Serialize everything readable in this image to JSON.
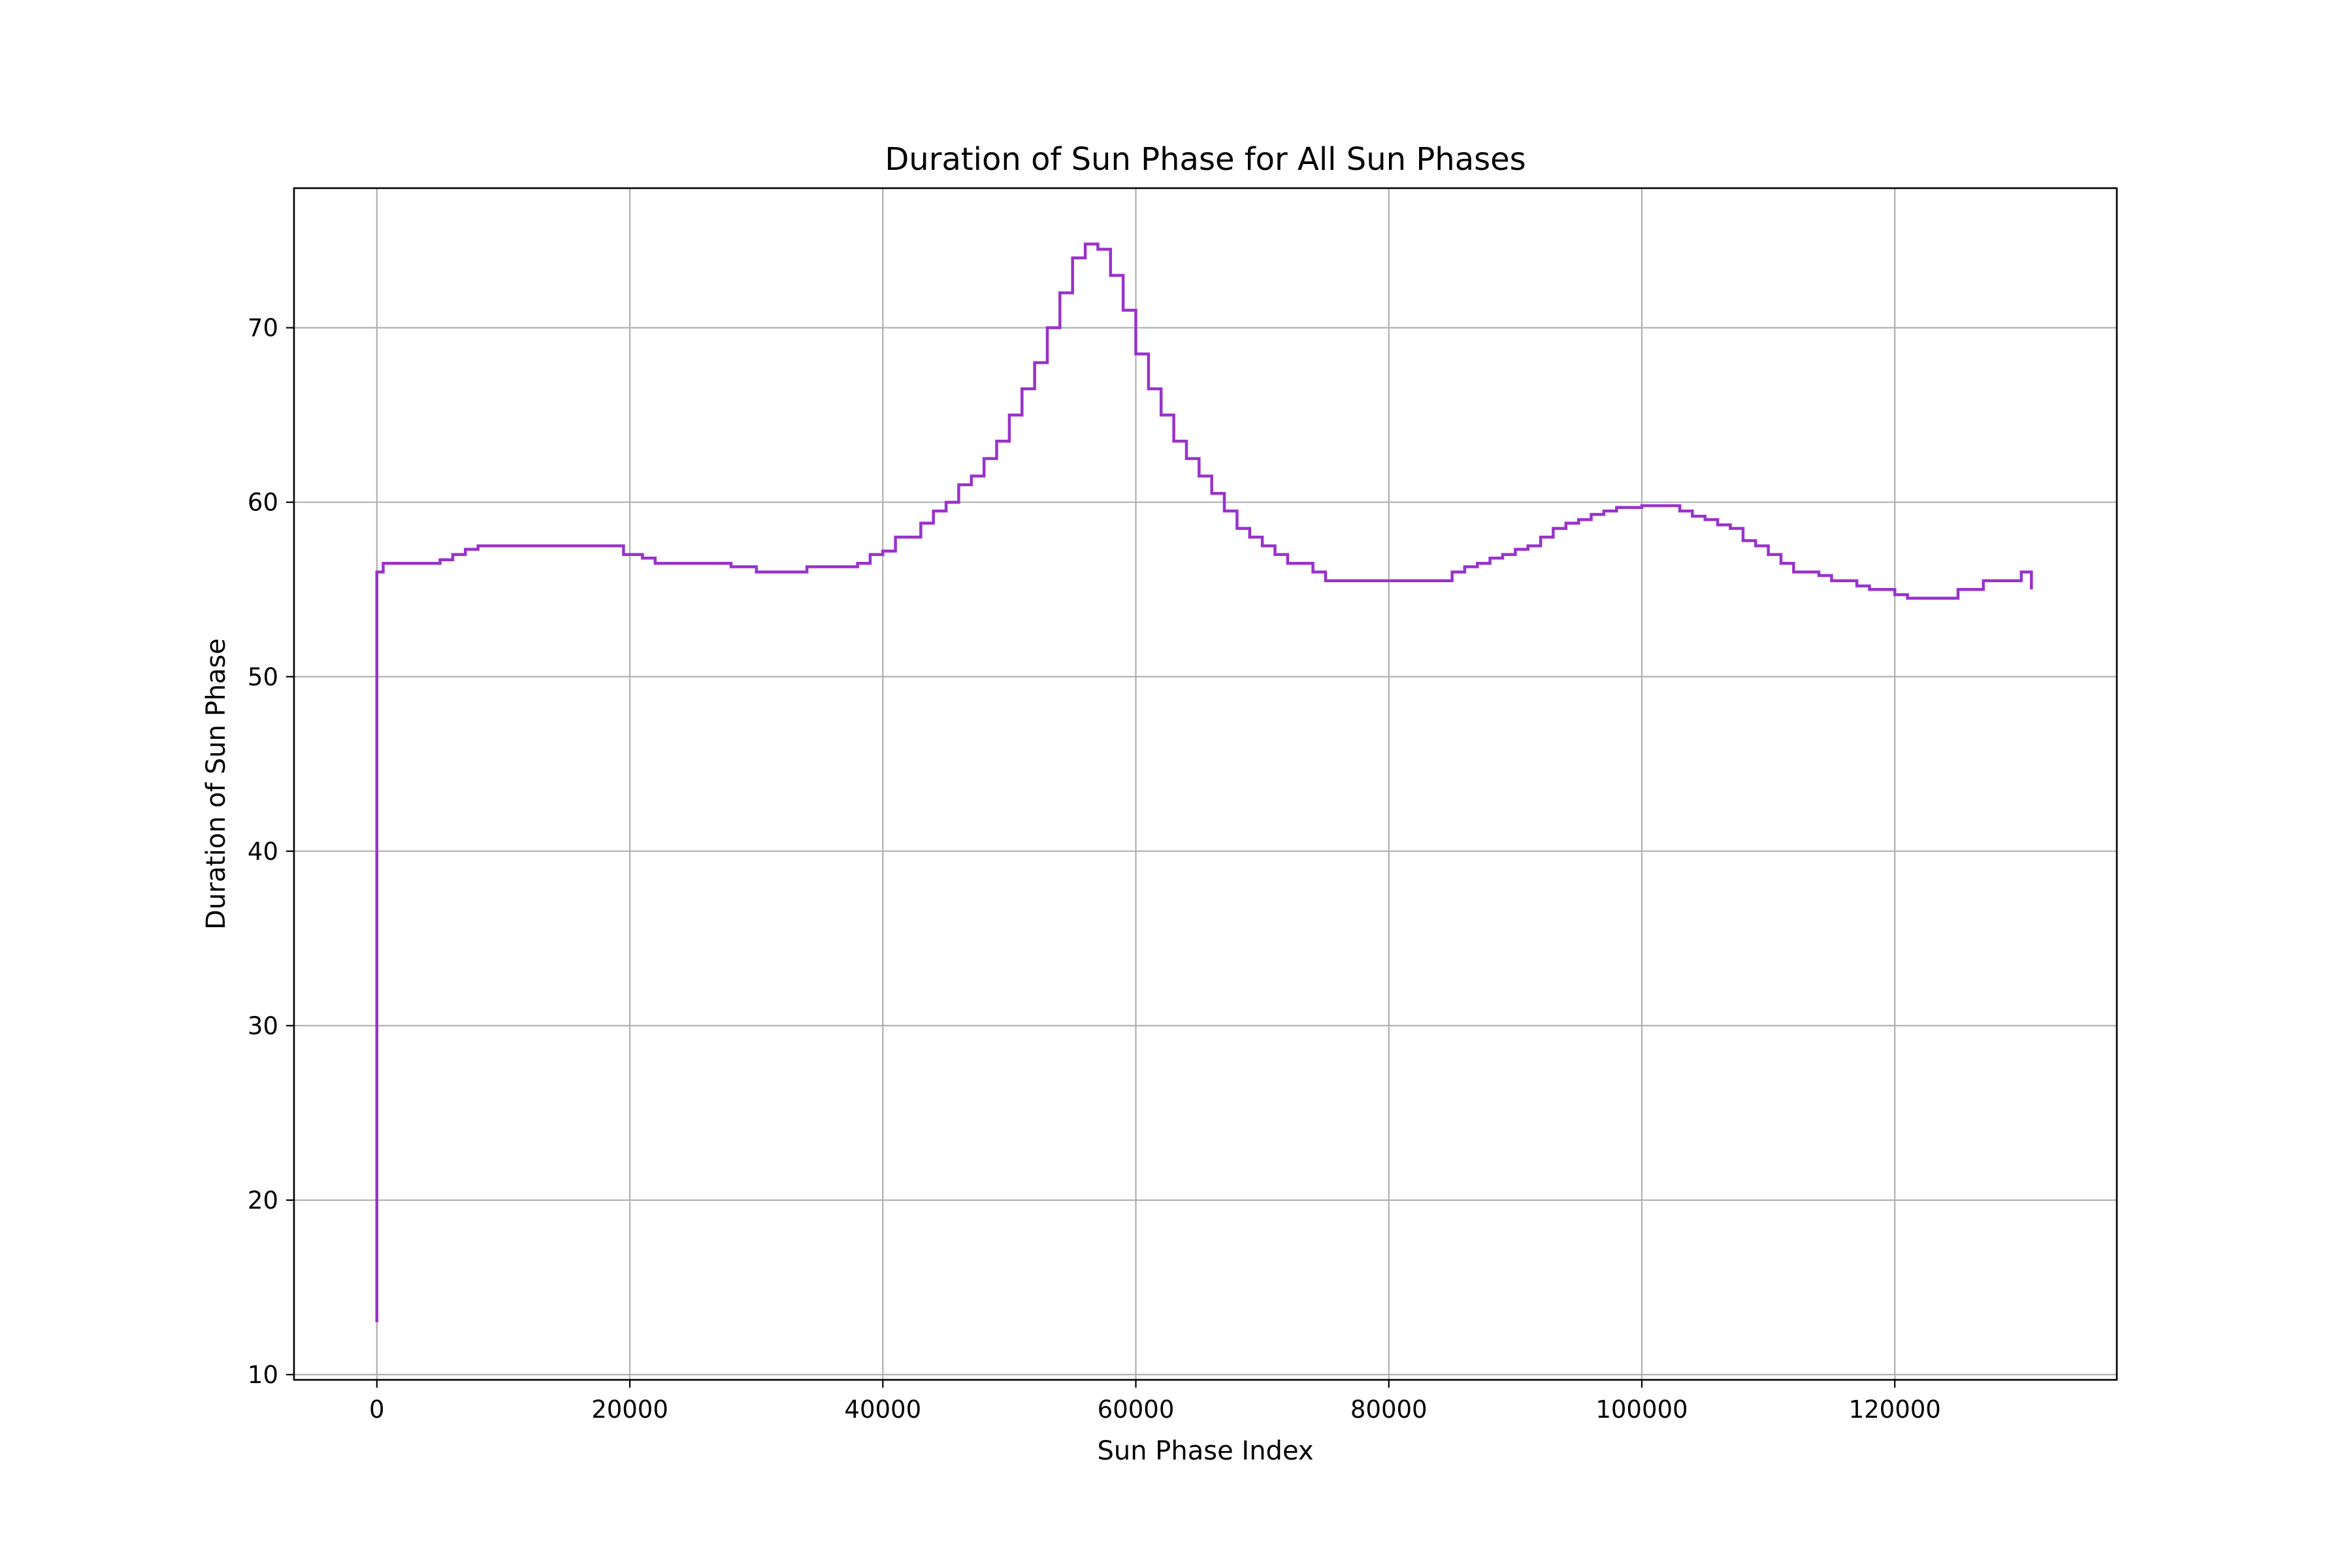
{
  "chart_data": {
    "type": "line",
    "title": "Duration of Sun Phase for All Sun Phases",
    "xlabel": "Sun Phase Index",
    "ylabel": "Duration of Sun Phase",
    "xlim": [
      -6550,
      137550
    ],
    "ylim": [
      9.7,
      78.0
    ],
    "xticks": [
      0,
      20000,
      40000,
      60000,
      80000,
      100000,
      120000
    ],
    "xtick_labels": [
      "0",
      "20000",
      "40000",
      "60000",
      "80000",
      "100000",
      "120000"
    ],
    "yticks": [
      10,
      20,
      30,
      40,
      50,
      60,
      70
    ],
    "ytick_labels": [
      "10",
      "20",
      "30",
      "40",
      "50",
      "60",
      "70"
    ],
    "grid": true,
    "legend": "none",
    "series": [
      {
        "color": "#9932cc",
        "x": [
          0,
          0,
          500,
          1500,
          2500,
          3500,
          5000,
          6000,
          7000,
          8000,
          9500,
          11000,
          13000,
          15000,
          17000,
          18500,
          19500,
          21000,
          22000,
          24000,
          26000,
          28000,
          30000,
          32000,
          34000,
          36000,
          38000,
          39000,
          40000,
          41000,
          42000,
          43000,
          44000,
          45000,
          46000,
          47000,
          48000,
          49000,
          50000,
          51000,
          52000,
          53000,
          54000,
          55000,
          56000,
          57000,
          58000,
          59000,
          60000,
          61000,
          62000,
          63000,
          64000,
          65000,
          66000,
          67000,
          68000,
          69000,
          70000,
          71000,
          72000,
          73000,
          74000,
          75000,
          77000,
          79000,
          81000,
          83000,
          85000,
          86000,
          87000,
          88000,
          89000,
          90000,
          91000,
          92000,
          93000,
          94000,
          95000,
          96000,
          97000,
          98000,
          99000,
          100000,
          101000,
          102000,
          103000,
          104000,
          105000,
          106000,
          107000,
          108000,
          109000,
          110000,
          111000,
          112000,
          113000,
          114000,
          115000,
          116000,
          117000,
          118000,
          119000,
          120000,
          121000,
          122000,
          123000,
          124000,
          125000,
          126000,
          127000,
          128000,
          129000,
          130000,
          130800,
          130800
        ],
        "values": [
          13,
          56,
          56.5,
          56.5,
          56.5,
          56.5,
          56.7,
          57,
          57.3,
          57.5,
          57.5,
          57.5,
          57.5,
          57.5,
          57.5,
          57.5,
          57,
          56.8,
          56.5,
          56.5,
          56.5,
          56.3,
          56,
          56,
          56.3,
          56.3,
          56.5,
          57,
          57.2,
          58,
          58,
          58.8,
          59.5,
          60,
          61,
          61.5,
          62.5,
          63.5,
          65,
          66.5,
          68,
          70,
          72,
          74,
          74.8,
          74.5,
          73,
          71,
          68.5,
          66.5,
          65,
          63.5,
          62.5,
          61.5,
          60.5,
          59.5,
          58.5,
          58,
          57.5,
          57,
          56.5,
          56.5,
          56,
          55.5,
          55.5,
          55.5,
          55.5,
          55.5,
          56,
          56.3,
          56.5,
          56.8,
          57,
          57.3,
          57.5,
          58,
          58.5,
          58.8,
          59,
          59.3,
          59.5,
          59.7,
          59.7,
          59.8,
          59.8,
          59.8,
          59.5,
          59.2,
          59,
          58.7,
          58.5,
          57.8,
          57.5,
          57,
          56.5,
          56,
          56,
          55.8,
          55.5,
          55.5,
          55.2,
          55,
          55,
          54.7,
          54.5,
          54.5,
          54.5,
          54.5,
          55,
          55,
          55.5,
          55.5,
          55.5,
          56,
          56,
          55
        ]
      }
    ]
  }
}
